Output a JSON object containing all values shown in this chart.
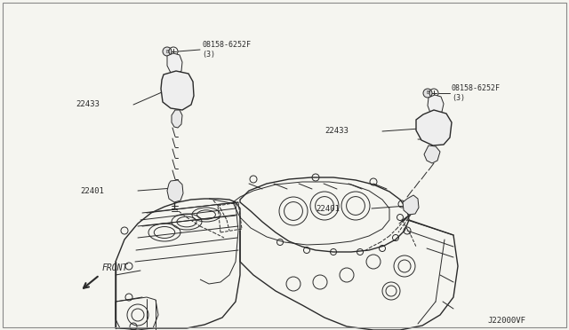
{
  "bg_color": "#f5f5f0",
  "border_color": "#aaaaaa",
  "line_color": "#2a2a2a",
  "diagram_code": "J22000VF",
  "part_labels": {
    "bolt_left": "08158-6252F\n(3)",
    "coil_left": "22433",
    "plug_left": "22401",
    "bolt_right": "08158-6252F\n(3)",
    "coil_right": "22433",
    "plug_right": "22401"
  },
  "front_label": "FRONT",
  "figsize": [
    6.4,
    3.72
  ],
  "dpi": 100
}
